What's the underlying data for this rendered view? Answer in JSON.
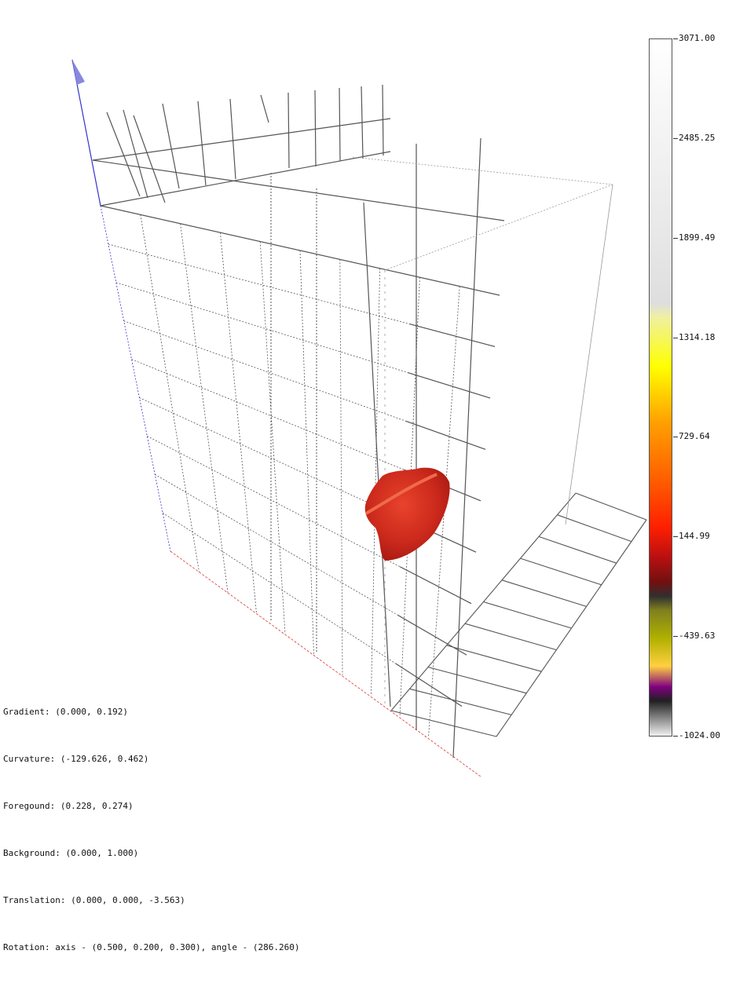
{
  "colorbar": {
    "ticks": [
      "3071.00",
      "2485.25",
      "1899.49",
      "1314.18",
      "729.64",
      "144.99",
      "-439.63",
      "-1024.00"
    ],
    "stops": [
      {
        "pos": 0.0,
        "color": "#ffffff"
      },
      {
        "pos": 0.3,
        "color": "#e6e6e6"
      },
      {
        "pos": 0.38,
        "color": "#dedede"
      },
      {
        "pos": 0.4,
        "color": "#f0f0a0"
      },
      {
        "pos": 0.47,
        "color": "#ffff00"
      },
      {
        "pos": 0.55,
        "color": "#ffa000"
      },
      {
        "pos": 0.63,
        "color": "#ff6000"
      },
      {
        "pos": 0.7,
        "color": "#ff2000"
      },
      {
        "pos": 0.74,
        "color": "#c01010"
      },
      {
        "pos": 0.78,
        "color": "#701010"
      },
      {
        "pos": 0.8,
        "color": "#303030"
      },
      {
        "pos": 0.82,
        "color": "#808020"
      },
      {
        "pos": 0.86,
        "color": "#b0b000"
      },
      {
        "pos": 0.9,
        "color": "#ffd040"
      },
      {
        "pos": 0.93,
        "color": "#800080"
      },
      {
        "pos": 0.95,
        "color": "#202020"
      },
      {
        "pos": 1.0,
        "color": "#f0f0f0"
      }
    ]
  },
  "info": {
    "gradient": "Gradient: (0.000, 0.192)",
    "curvature": "Curvature: (-129.626, 0.462)",
    "foreground": "Foregound: (0.228, 0.274)",
    "background": "Background: (0.000, 1.000)",
    "translation": "Translation: (0.000, 0.000, -3.563)",
    "rotation": "Rotation: axis - (0.500, 0.200, 0.300), angle - (286.260)"
  },
  "colors": {
    "grid": "#555555",
    "box": "#999999",
    "axis_z": "#3333cc",
    "axis_x": "#dd3333",
    "object": "#d42a1e"
  }
}
